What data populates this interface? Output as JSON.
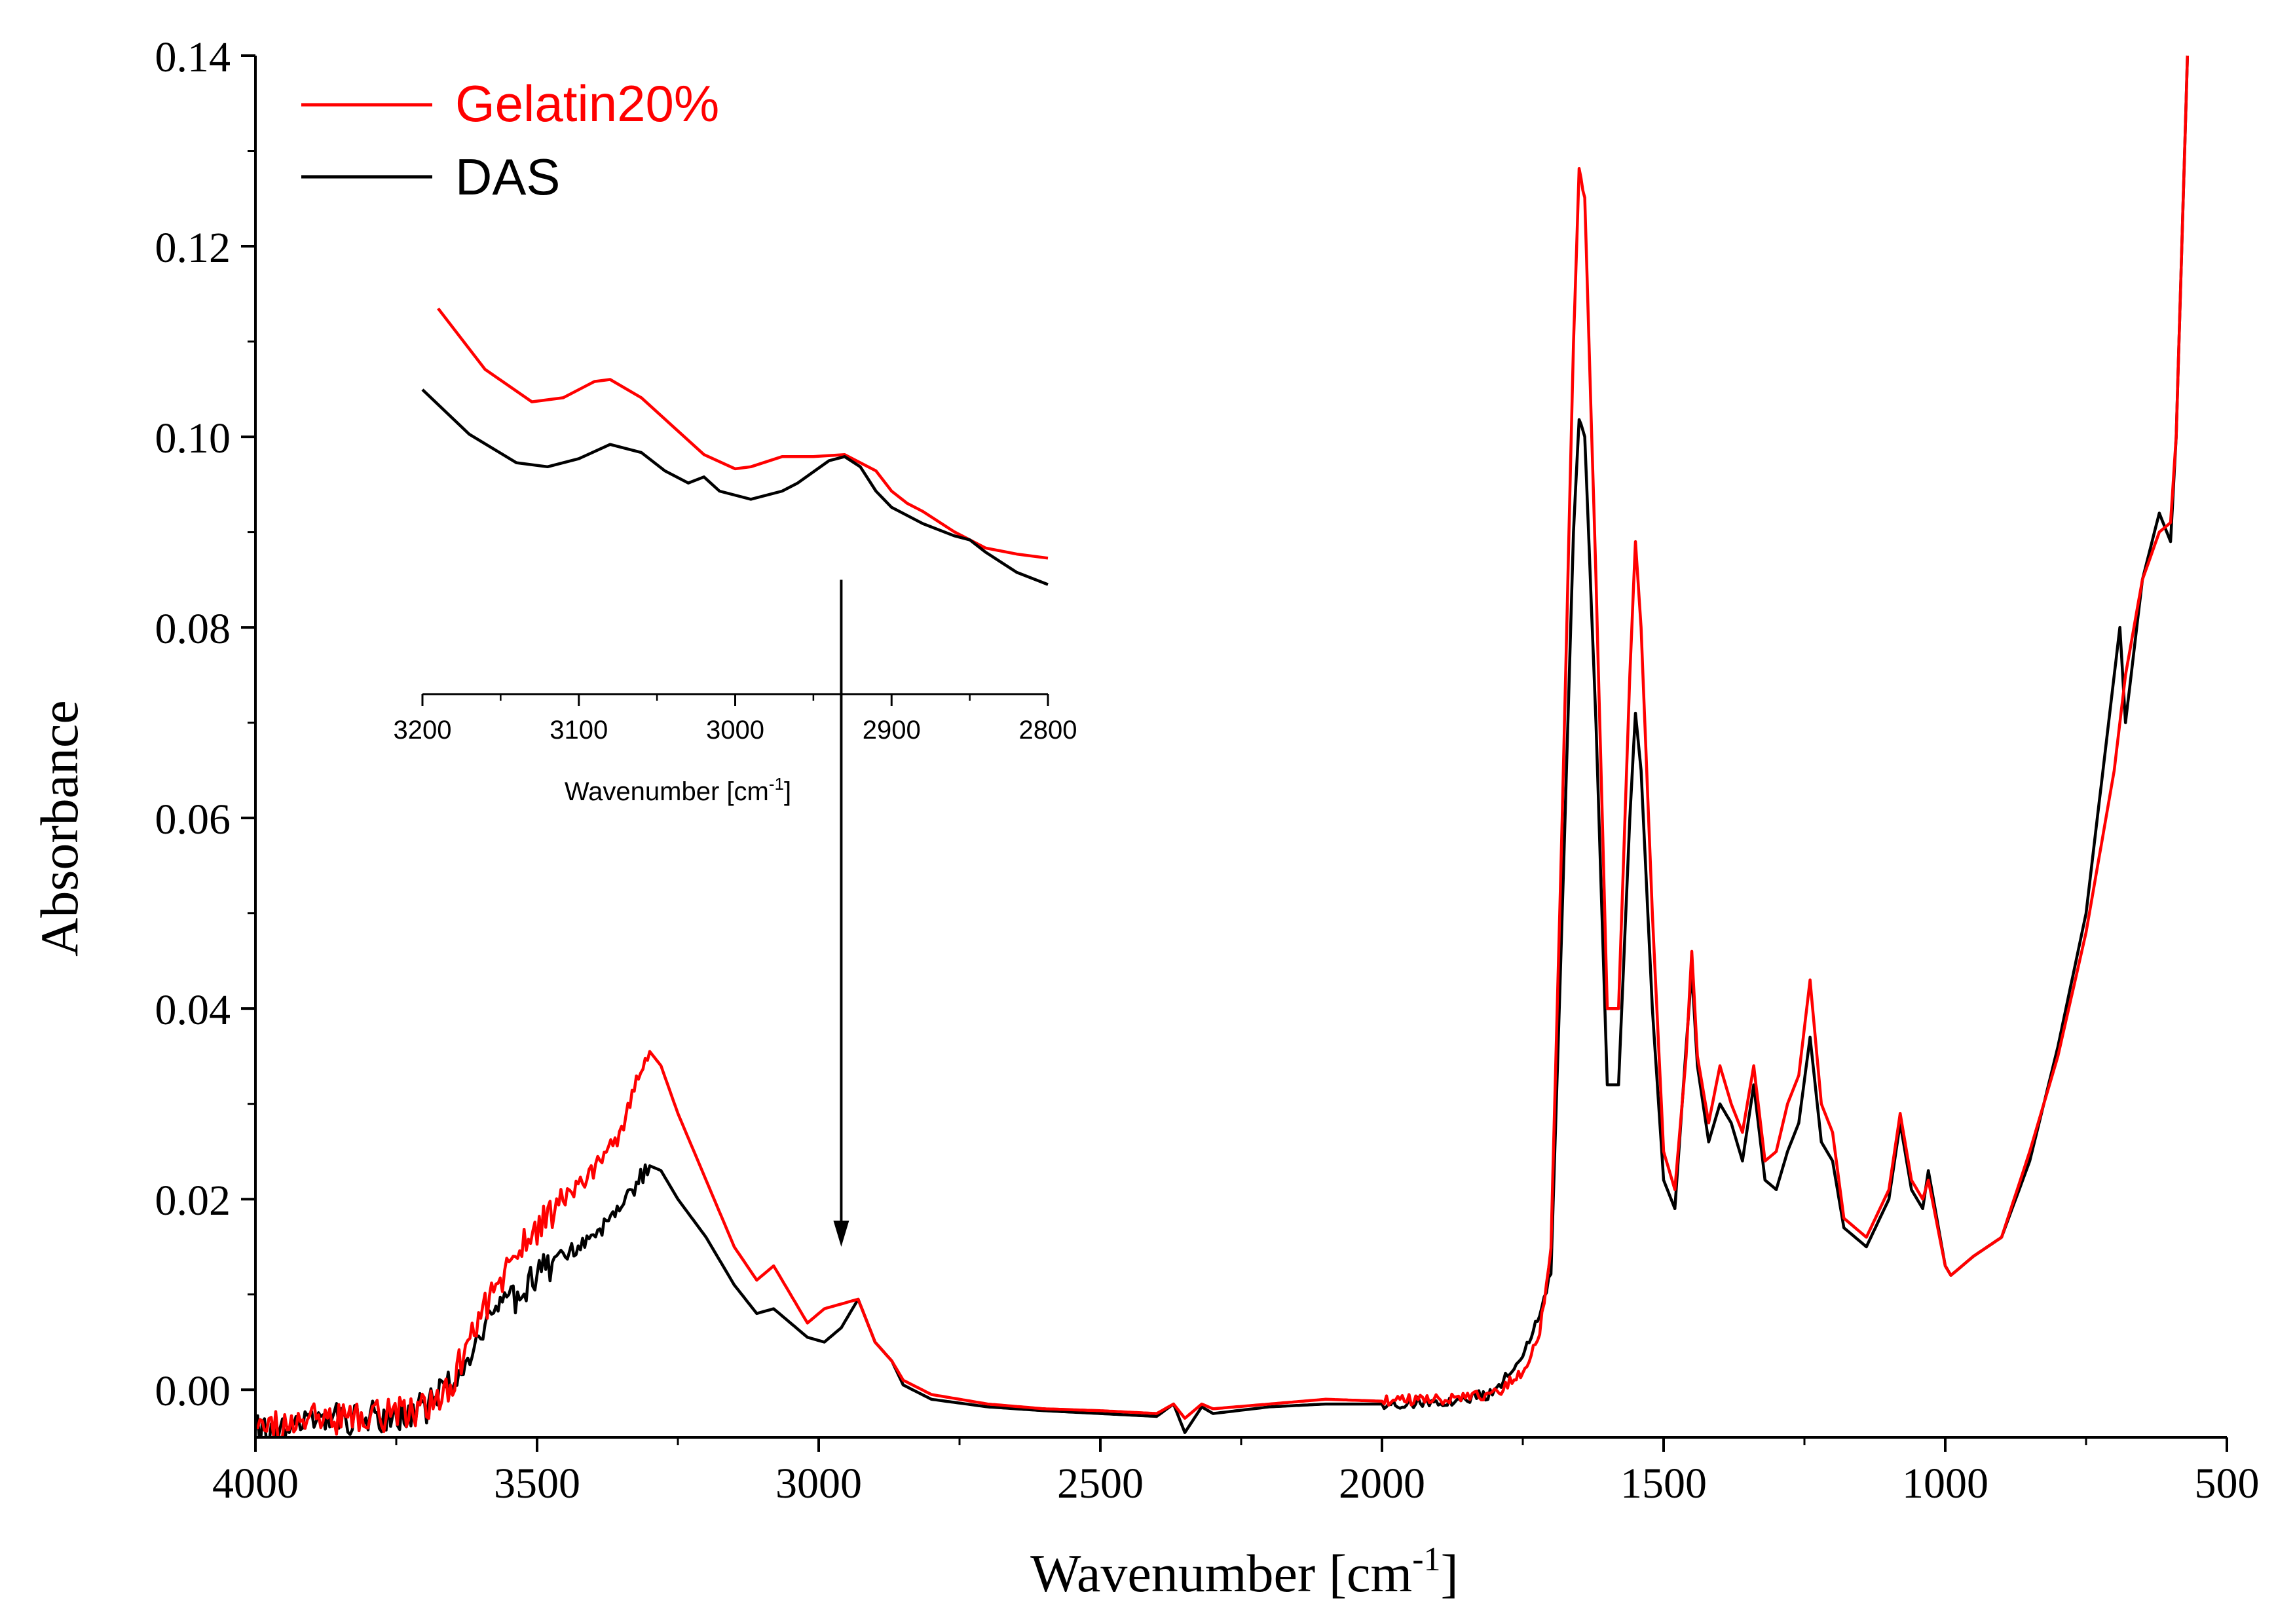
{
  "chart_data": [
    {
      "type": "line",
      "name": "main",
      "xlabel": "Wavenumber [cm",
      "xlabel_sup": "-1",
      "xlabel_end": "]",
      "ylabel": "Absorbance",
      "xlim": [
        4000,
        500
      ],
      "ylim": [
        -0.005,
        0.14
      ],
      "xticks": [
        4000,
        3500,
        3000,
        2500,
        2000,
        1500,
        1000,
        500
      ],
      "yticks": [
        0.0,
        0.02,
        0.04,
        0.06,
        0.08,
        0.1,
        0.12,
        0.14
      ],
      "ytick_labels": [
        "0.00",
        "0.02",
        "0.04",
        "0.06",
        "0.08",
        "0.10",
        "0.12",
        "0.14"
      ],
      "legend": [
        {
          "label": "Gelatin20%",
          "color": "#ff0000"
        },
        {
          "label": "DAS",
          "color": "#000000"
        }
      ],
      "legend_position": "top-left",
      "series": [
        {
          "name": "Gelatin20%",
          "color": "#ff0000",
          "points": [
            [
              4000,
              -0.0045
            ],
            [
              3900,
              -0.003
            ],
            [
              3800,
              -0.003
            ],
            [
              3700,
              -0.002
            ],
            [
              3650,
              0.001
            ],
            [
              3600,
              0.008
            ],
            [
              3550,
              0.013
            ],
            [
              3500,
              0.017
            ],
            [
              3450,
              0.02
            ],
            [
              3400,
              0.023
            ],
            [
              3350,
              0.027
            ],
            [
              3320,
              0.033
            ],
            [
              3300,
              0.0355
            ],
            [
              3280,
              0.034
            ],
            [
              3250,
              0.029
            ],
            [
              3200,
              0.022
            ],
            [
              3150,
              0.015
            ],
            [
              3110,
              0.0115
            ],
            [
              3080,
              0.013
            ],
            [
              3050,
              0.01
            ],
            [
              3020,
              0.007
            ],
            [
              2990,
              0.0085
            ],
            [
              2960,
              0.009
            ],
            [
              2930,
              0.0095
            ],
            [
              2900,
              0.005
            ],
            [
              2870,
              0.003
            ],
            [
              2850,
              0.001
            ],
            [
              2800,
              -0.0005
            ],
            [
              2700,
              -0.0015
            ],
            [
              2600,
              -0.002
            ],
            [
              2500,
              -0.0022
            ],
            [
              2400,
              -0.0025
            ],
            [
              2370,
              -0.0015
            ],
            [
              2350,
              -0.003
            ],
            [
              2320,
              -0.0015
            ],
            [
              2300,
              -0.002
            ],
            [
              2200,
              -0.0015
            ],
            [
              2100,
              -0.001
            ],
            [
              2000,
              -0.0012
            ],
            [
              1900,
              -0.001
            ],
            [
              1800,
              -0.0005
            ],
            [
              1750,
              0.002
            ],
            [
              1720,
              0.006
            ],
            [
              1700,
              0.015
            ],
            [
              1680,
              0.06
            ],
            [
              1660,
              0.11
            ],
            [
              1650,
              0.128
            ],
            [
              1640,
              0.125
            ],
            [
              1620,
              0.085
            ],
            [
              1600,
              0.04
            ],
            [
              1580,
              0.04
            ],
            [
              1560,
              0.075
            ],
            [
              1550,
              0.089
            ],
            [
              1540,
              0.08
            ],
            [
              1520,
              0.05
            ],
            [
              1500,
              0.025
            ],
            [
              1480,
              0.021
            ],
            [
              1460,
              0.035
            ],
            [
              1450,
              0.046
            ],
            [
              1440,
              0.035
            ],
            [
              1420,
              0.028
            ],
            [
              1400,
              0.034
            ],
            [
              1380,
              0.03
            ],
            [
              1360,
              0.027
            ],
            [
              1340,
              0.034
            ],
            [
              1320,
              0.024
            ],
            [
              1300,
              0.025
            ],
            [
              1280,
              0.03
            ],
            [
              1260,
              0.033
            ],
            [
              1240,
              0.043
            ],
            [
              1220,
              0.03
            ],
            [
              1200,
              0.027
            ],
            [
              1180,
              0.018
            ],
            [
              1160,
              0.017
            ],
            [
              1140,
              0.016
            ],
            [
              1100,
              0.021
            ],
            [
              1080,
              0.029
            ],
            [
              1060,
              0.022
            ],
            [
              1040,
              0.02
            ],
            [
              1030,
              0.022
            ],
            [
              1000,
              0.013
            ],
            [
              990,
              0.012
            ],
            [
              950,
              0.014
            ],
            [
              900,
              0.016
            ],
            [
              850,
              0.025
            ],
            [
              800,
              0.035
            ],
            [
              750,
              0.048
            ],
            [
              700,
              0.065
            ],
            [
              680,
              0.075
            ],
            [
              650,
              0.085
            ],
            [
              620,
              0.09
            ],
            [
              600,
              0.091
            ],
            [
              590,
              0.1
            ],
            [
              570,
              0.14
            ]
          ]
        },
        {
          "name": "DAS",
          "color": "#000000",
          "points": [
            [
              4000,
              -0.0045
            ],
            [
              3900,
              -0.003
            ],
            [
              3800,
              -0.003
            ],
            [
              3700,
              -0.002
            ],
            [
              3650,
              0.001
            ],
            [
              3600,
              0.006
            ],
            [
              3550,
              0.009
            ],
            [
              3500,
              0.012
            ],
            [
              3450,
              0.014
            ],
            [
              3400,
              0.016
            ],
            [
              3350,
              0.019
            ],
            [
              3320,
              0.022
            ],
            [
              3300,
              0.0235
            ],
            [
              3280,
              0.023
            ],
            [
              3250,
              0.02
            ],
            [
              3200,
              0.016
            ],
            [
              3150,
              0.011
            ],
            [
              3110,
              0.008
            ],
            [
              3080,
              0.0085
            ],
            [
              3050,
              0.007
            ],
            [
              3020,
              0.0055
            ],
            [
              2990,
              0.005
            ],
            [
              2960,
              0.0065
            ],
            [
              2930,
              0.0095
            ],
            [
              2900,
              0.005
            ],
            [
              2870,
              0.003
            ],
            [
              2850,
              0.0005
            ],
            [
              2800,
              -0.001
            ],
            [
              2700,
              -0.0018
            ],
            [
              2600,
              -0.0022
            ],
            [
              2500,
              -0.0025
            ],
            [
              2400,
              -0.0028
            ],
            [
              2370,
              -0.0015
            ],
            [
              2350,
              -0.0045
            ],
            [
              2320,
              -0.0018
            ],
            [
              2300,
              -0.0025
            ],
            [
              2200,
              -0.0018
            ],
            [
              2100,
              -0.0015
            ],
            [
              2000,
              -0.0015
            ],
            [
              1900,
              -0.0012
            ],
            [
              1800,
              -0.0005
            ],
            [
              1750,
              0.004
            ],
            [
              1720,
              0.008
            ],
            [
              1700,
              0.012
            ],
            [
              1680,
              0.05
            ],
            [
              1660,
              0.09
            ],
            [
              1650,
              0.102
            ],
            [
              1640,
              0.1
            ],
            [
              1620,
              0.07
            ],
            [
              1600,
              0.032
            ],
            [
              1580,
              0.032
            ],
            [
              1560,
              0.06
            ],
            [
              1550,
              0.071
            ],
            [
              1540,
              0.065
            ],
            [
              1520,
              0.04
            ],
            [
              1500,
              0.022
            ],
            [
              1480,
              0.019
            ],
            [
              1460,
              0.036
            ],
            [
              1450,
              0.044
            ],
            [
              1440,
              0.034
            ],
            [
              1420,
              0.026
            ],
            [
              1400,
              0.03
            ],
            [
              1380,
              0.028
            ],
            [
              1360,
              0.024
            ],
            [
              1340,
              0.032
            ],
            [
              1320,
              0.022
            ],
            [
              1300,
              0.021
            ],
            [
              1280,
              0.025
            ],
            [
              1260,
              0.028
            ],
            [
              1240,
              0.037
            ],
            [
              1220,
              0.026
            ],
            [
              1200,
              0.024
            ],
            [
              1180,
              0.017
            ],
            [
              1160,
              0.016
            ],
            [
              1140,
              0.015
            ],
            [
              1100,
              0.02
            ],
            [
              1080,
              0.028
            ],
            [
              1060,
              0.021
            ],
            [
              1040,
              0.019
            ],
            [
              1030,
              0.023
            ],
            [
              1000,
              0.013
            ],
            [
              990,
              0.012
            ],
            [
              950,
              0.014
            ],
            [
              900,
              0.016
            ],
            [
              850,
              0.024
            ],
            [
              800,
              0.036
            ],
            [
              750,
              0.05
            ],
            [
              700,
              0.075
            ],
            [
              690,
              0.08
            ],
            [
              680,
              0.07
            ],
            [
              650,
              0.085
            ],
            [
              620,
              0.092
            ],
            [
              600,
              0.089
            ],
            [
              590,
              0.1
            ],
            [
              570,
              0.14
            ]
          ]
        }
      ],
      "annotations": [
        {
          "type": "arrow",
          "x": 2960,
          "from_y": 0.085,
          "to_y": 0.015
        }
      ]
    },
    {
      "type": "line",
      "name": "inset",
      "xlabel": "Wavenumber [cm",
      "xlabel_sup": "-1",
      "xlabel_end": "]",
      "xlim": [
        3200,
        2800
      ],
      "xticks": [
        3200,
        3100,
        3000,
        2900,
        2800
      ],
      "yaxis_visible": false,
      "series": [
        {
          "name": "Gelatin20%",
          "color": "#ff0000",
          "points": [
            [
              3190,
              0.95
            ],
            [
              3160,
              0.8
            ],
            [
              3130,
              0.72
            ],
            [
              3110,
              0.73
            ],
            [
              3090,
              0.77
            ],
            [
              3080,
              0.775
            ],
            [
              3060,
              0.73
            ],
            [
              3040,
              0.66
            ],
            [
              3020,
              0.59
            ],
            [
              3000,
              0.555
            ],
            [
              2990,
              0.56
            ],
            [
              2970,
              0.585
            ],
            [
              2950,
              0.585
            ],
            [
              2930,
              0.59
            ],
            [
              2910,
              0.55
            ],
            [
              2900,
              0.5
            ],
            [
              2890,
              0.47
            ],
            [
              2880,
              0.45
            ],
            [
              2860,
              0.4
            ],
            [
              2840,
              0.36
            ],
            [
              2820,
              0.345
            ],
            [
              2800,
              0.335
            ]
          ]
        },
        {
          "name": "DAS",
          "color": "#000000",
          "points": [
            [
              3200,
              0.75
            ],
            [
              3170,
              0.64
            ],
            [
              3140,
              0.57
            ],
            [
              3120,
              0.56
            ],
            [
              3100,
              0.58
            ],
            [
              3080,
              0.615
            ],
            [
              3060,
              0.595
            ],
            [
              3045,
              0.55
            ],
            [
              3030,
              0.52
            ],
            [
              3020,
              0.535
            ],
            [
              3010,
              0.5
            ],
            [
              2990,
              0.48
            ],
            [
              2970,
              0.5
            ],
            [
              2960,
              0.52
            ],
            [
              2940,
              0.575
            ],
            [
              2930,
              0.585
            ],
            [
              2920,
              0.56
            ],
            [
              2910,
              0.5
            ],
            [
              2900,
              0.46
            ],
            [
              2880,
              0.42
            ],
            [
              2860,
              0.39
            ],
            [
              2850,
              0.38
            ],
            [
              2840,
              0.35
            ],
            [
              2820,
              0.3
            ],
            [
              2800,
              0.27
            ]
          ]
        }
      ]
    }
  ]
}
